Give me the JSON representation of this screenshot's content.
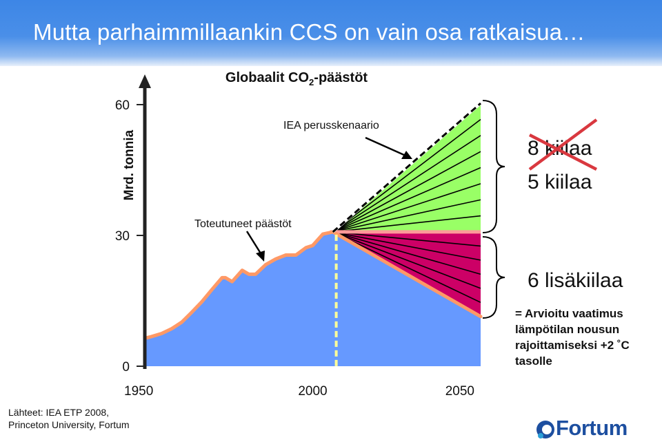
{
  "slide": {
    "title": "Mutta parhaimmillaankin CCS on vain osa ratkaisua…",
    "sources": [
      "Lähteet: IEA ETP 2008,",
      "Princeton University, Fortum"
    ],
    "note": [
      "= Arvioitu vaatimus",
      "lämpötilan nousun",
      "rajoittamiseksi +2 ˚C",
      "tasolle"
    ],
    "logo_text": "Fortum"
  },
  "chart_data": {
    "type": "area",
    "title_prefix": "Globaalit CO",
    "title_sub": "2",
    "title_suffix": "-päästöt",
    "ylabel": "Mrd. tonnia",
    "yticks": [
      "0",
      "30",
      "60"
    ],
    "ylim": [
      0,
      60
    ],
    "xticks": [
      "1950",
      "2000",
      "2050"
    ],
    "xlim": [
      1950,
      2050
    ],
    "annotations": {
      "baseline": "IEA perusskenaario",
      "historical": "Toteutuneet päästöt",
      "wedges_struck": "8 kiilaa",
      "wedges_upper": "5 kiilaa",
      "wedges_lower": "6 lisäkiilaa"
    },
    "historical": {
      "name": "Toteutuneet päästöt",
      "x": [
        1950,
        1952,
        1955,
        1958,
        1961,
        1964,
        1967,
        1970,
        1973,
        1974,
        1976,
        1979,
        1981,
        1983,
        1986,
        1989,
        1992,
        1995,
        1998,
        2000,
        2003,
        2006
      ],
      "y": [
        6.4,
        6.8,
        7.5,
        8.6,
        10.1,
        12.4,
        14.8,
        17.6,
        20.3,
        20.3,
        19.4,
        22.0,
        21.1,
        21.1,
        23.3,
        24.6,
        25.5,
        25.5,
        27.2,
        27.7,
        30.3,
        30.8
      ]
    },
    "baseline": {
      "name": "IEA perusskenaario",
      "x": [
        2006,
        2050
      ],
      "y": [
        30.8,
        60.3
      ]
    },
    "stabilization": {
      "x": [
        2006,
        2050
      ],
      "y": [
        30.8,
        30.8
      ]
    },
    "target": {
      "x": [
        2006,
        2050
      ],
      "y": [
        30.8,
        11.4
      ]
    },
    "wedges_upper_count": 8,
    "wedges_lower_count": 6,
    "reference_year": 2007,
    "colors": {
      "background_area": "#6699ff",
      "upper_wedges": "#99ff66",
      "lower_wedges": "#cc0066",
      "historical_line": "#ff9966",
      "stabilization_line": "#ff9999",
      "wedge_lines": "#000000",
      "reference_line": "#ffff99",
      "strike": "#d9383f"
    }
  }
}
